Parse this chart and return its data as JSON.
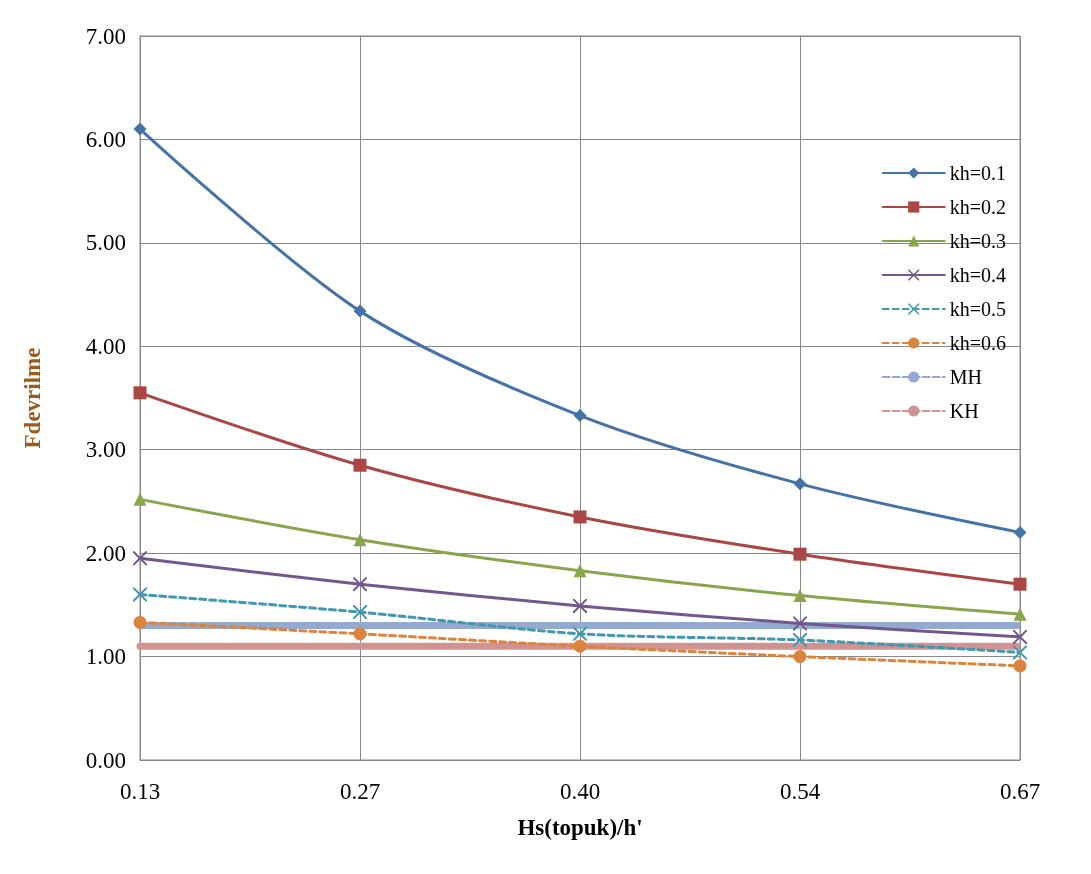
{
  "chart_data": {
    "type": "line",
    "xlabel": "Hs(topuk)/h'",
    "ylabel": "Fdevrilme",
    "categories": [
      "0.13",
      "0.27",
      "0.40",
      "0.54",
      "0.67"
    ],
    "series": [
      {
        "name": "kh=0.1",
        "color": "#4572a7",
        "marker": "diamond",
        "line_style": "solid",
        "values": [
          6.1,
          4.34,
          3.33,
          2.67,
          2.2
        ]
      },
      {
        "name": "kh=0.2",
        "color": "#aa4643",
        "marker": "square",
        "line_style": "solid",
        "values": [
          3.55,
          2.85,
          2.35,
          1.99,
          1.7
        ]
      },
      {
        "name": "kh=0.3",
        "color": "#89a54e",
        "marker": "triangle",
        "line_style": "solid",
        "values": [
          2.52,
          2.13,
          1.83,
          1.59,
          1.41
        ]
      },
      {
        "name": "kh=0.4",
        "color": "#71588f",
        "marker": "cross",
        "line_style": "solid",
        "values": [
          1.95,
          1.7,
          1.49,
          1.32,
          1.19
        ]
      },
      {
        "name": "kh=0.5",
        "color": "#4198af",
        "marker": "cross",
        "line_style": "dashed",
        "values": [
          1.6,
          1.43,
          1.22,
          1.16,
          1.04
        ]
      },
      {
        "name": "kh=0.6",
        "color": "#db843d",
        "marker": "circle",
        "line_style": "dashed",
        "values": [
          1.33,
          1.22,
          1.1,
          1.0,
          0.91
        ]
      },
      {
        "name": "MH",
        "color": "#93a9cf",
        "marker": "none",
        "line_style": "dashed",
        "values": [
          1.3,
          1.3,
          1.3,
          1.3,
          1.3
        ]
      },
      {
        "name": "KH",
        "color": "#d19392",
        "marker": "none",
        "line_style": "dashed",
        "values": [
          1.1,
          1.1,
          1.1,
          1.1,
          1.1
        ]
      }
    ],
    "ylim": [
      0,
      7
    ],
    "yticks": [
      {
        "value": 0,
        "label": "0.00"
      },
      {
        "value": 1,
        "label": "1.00"
      },
      {
        "value": 2,
        "label": "2.00"
      },
      {
        "value": 3,
        "label": "3.00"
      },
      {
        "value": 4,
        "label": "4.00"
      },
      {
        "value": 5,
        "label": "5.00"
      },
      {
        "value": 6,
        "label": "6.00"
      },
      {
        "value": 7,
        "label": "7.00"
      }
    ],
    "grid": true,
    "legend": "right"
  }
}
